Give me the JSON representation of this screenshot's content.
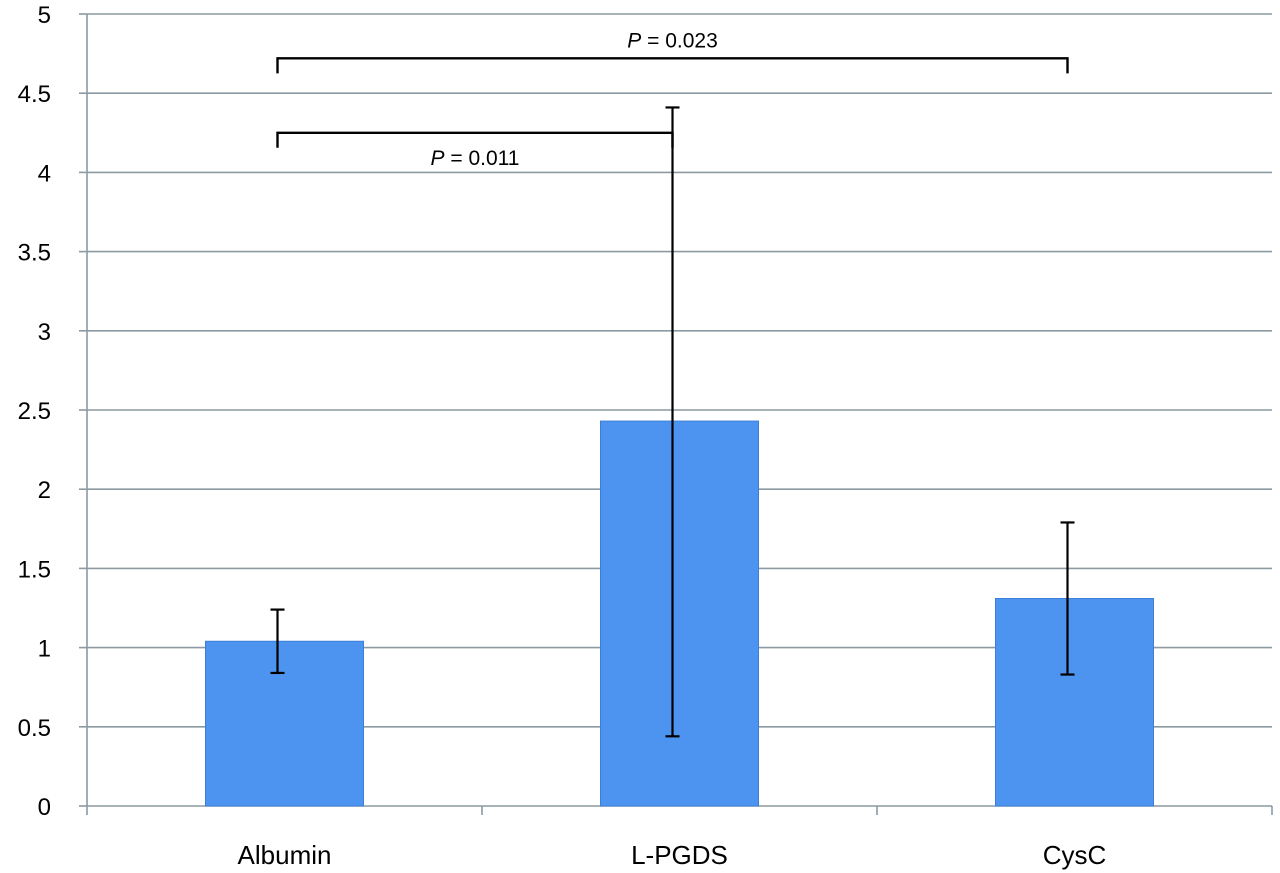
{
  "chart_data": {
    "type": "bar",
    "title": "",
    "xlabel": "",
    "ylabel": "",
    "categories": [
      "Albumin",
      "L-PGDS",
      "CysC"
    ],
    "values": [
      1.04,
      2.43,
      1.31
    ],
    "error_high": [
      1.24,
      4.41,
      1.79
    ],
    "error_low": [
      0.84,
      0.44,
      0.83
    ],
    "ylim": [
      0,
      5
    ],
    "yticks": [
      0,
      0.5,
      1,
      1.5,
      2,
      2.5,
      3,
      3.5,
      4,
      4.5,
      5
    ],
    "ytick_labels": [
      "0",
      "0.5",
      "1",
      "1.5",
      "2",
      "2.5",
      "3",
      "3.5",
      "4",
      "4.5",
      "5"
    ],
    "grid": true,
    "bar_color": "#4d94f0",
    "annotations": [
      {
        "from": "Albumin",
        "to": "L-PGDS",
        "italic": "P",
        "text": " = 0.011",
        "level": 4.25,
        "label_side": "below"
      },
      {
        "from": "Albumin",
        "to": "CysC",
        "italic": "P",
        "text": " = 0.023",
        "level": 4.72,
        "label_side": "above"
      }
    ]
  }
}
